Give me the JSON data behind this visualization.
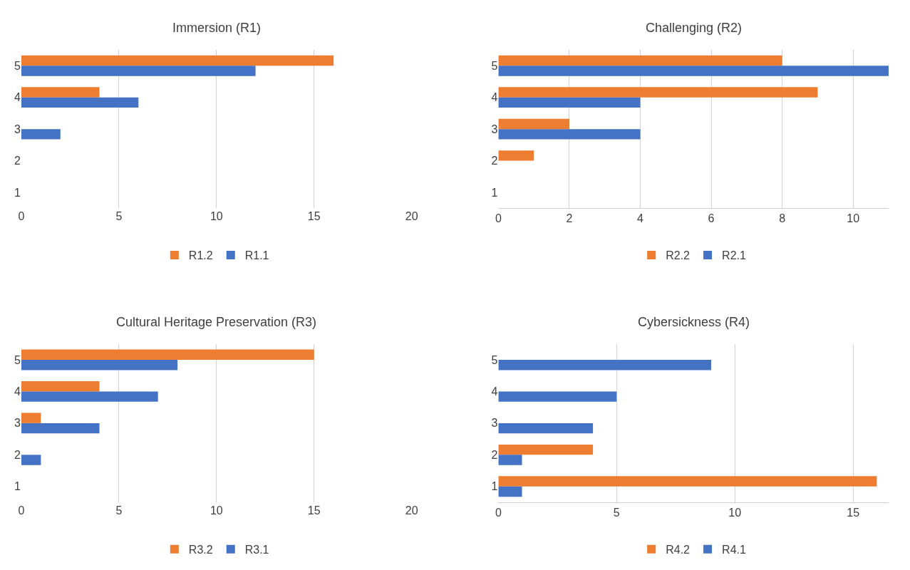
{
  "chart_data": [
    {
      "type": "bar",
      "orientation": "horizontal",
      "title": "Immersion (R1)",
      "categories": [
        "5",
        "4",
        "3",
        "2",
        "1"
      ],
      "xlim": [
        0,
        20
      ],
      "xticks": [
        0,
        5,
        10,
        15,
        20
      ],
      "grid": "x",
      "legend": "bottom",
      "series": [
        {
          "name": "R1.2",
          "color": "#ed7d31",
          "values": [
            16,
            4,
            0,
            0,
            0
          ]
        },
        {
          "name": "R1.1",
          "color": "#4472c4",
          "values": [
            12,
            6,
            2,
            0,
            0
          ]
        }
      ]
    },
    {
      "type": "bar",
      "orientation": "horizontal",
      "title": "Challenging (R2)",
      "categories": [
        "5",
        "4",
        "3",
        "2",
        "1"
      ],
      "xlim": [
        0,
        11
      ],
      "xticks": [
        0,
        2,
        4,
        6,
        8,
        10
      ],
      "grid": "x",
      "legend": "bottom",
      "series": [
        {
          "name": "R2.2",
          "color": "#ed7d31",
          "values": [
            8,
            9,
            2,
            1,
            0
          ]
        },
        {
          "name": "R2.1",
          "color": "#4472c4",
          "values": [
            11,
            4,
            4,
            0,
            0
          ]
        }
      ]
    },
    {
      "type": "bar",
      "orientation": "horizontal",
      "title": "Cultural Heritage Preservation (R3)",
      "categories": [
        "5",
        "4",
        "3",
        "2",
        "1"
      ],
      "xlim": [
        0,
        20
      ],
      "xticks": [
        0,
        5,
        10,
        15,
        20
      ],
      "grid": "x",
      "legend": "bottom",
      "series": [
        {
          "name": "R3.2",
          "color": "#ed7d31",
          "values": [
            15,
            4,
            1,
            0,
            0
          ]
        },
        {
          "name": "R3.1",
          "color": "#4472c4",
          "values": [
            8,
            7,
            4,
            1,
            0
          ]
        }
      ]
    },
    {
      "type": "bar",
      "orientation": "horizontal",
      "title": "Cybersickness (R4)",
      "categories": [
        "5",
        "4",
        "3",
        "2",
        "1"
      ],
      "xlim": [
        0,
        16.5
      ],
      "xticks": [
        0,
        5,
        10,
        15
      ],
      "grid": "x",
      "legend": "bottom",
      "series": [
        {
          "name": "R4.2",
          "color": "#ed7d31",
          "values": [
            0,
            0,
            0,
            4,
            16
          ]
        },
        {
          "name": "R4.1",
          "color": "#4472c4",
          "values": [
            9,
            5,
            4,
            1,
            1
          ]
        }
      ]
    }
  ]
}
